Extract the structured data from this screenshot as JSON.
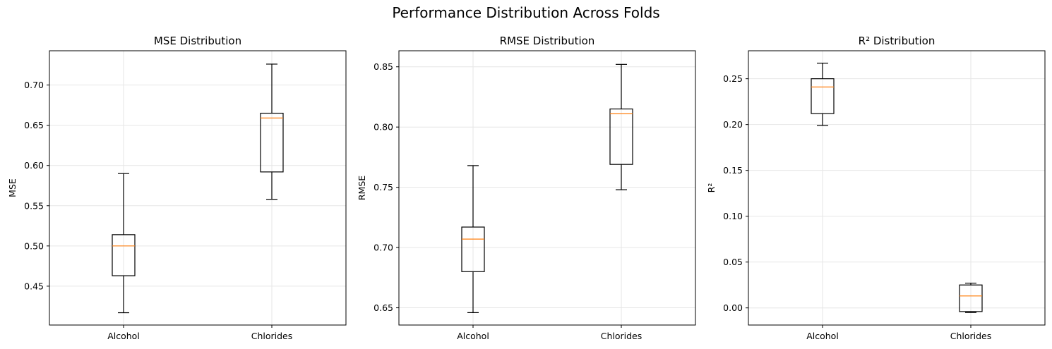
{
  "suptitle": "Performance Distribution Across Folds",
  "chart_data": [
    {
      "type": "box",
      "title": "MSE Distribution",
      "xlabel": "",
      "ylabel": "MSE",
      "categories": [
        "Alcohol",
        "Chlorides"
      ],
      "ylim": [
        0.4017,
        0.7426
      ],
      "yticks": [
        0.45,
        0.5,
        0.55,
        0.6,
        0.65,
        0.7
      ],
      "tick_format": 2,
      "grid": true,
      "boxes": [
        {
          "name": "Alcohol",
          "whisker_low": 0.417,
          "q1": 0.463,
          "median": 0.5,
          "q3": 0.514,
          "whisker_high": 0.59
        },
        {
          "name": "Chlorides",
          "whisker_low": 0.558,
          "q1": 0.592,
          "median": 0.659,
          "q3": 0.665,
          "whisker_high": 0.726
        }
      ]
    },
    {
      "type": "box",
      "title": "RMSE Distribution",
      "xlabel": "",
      "ylabel": "RMSE",
      "categories": [
        "Alcohol",
        "Chlorides"
      ],
      "ylim": [
        0.6357,
        0.8633
      ],
      "yticks": [
        0.65,
        0.7,
        0.75,
        0.8,
        0.85
      ],
      "tick_format": 2,
      "grid": true,
      "boxes": [
        {
          "name": "Alcohol",
          "whisker_low": 0.646,
          "q1": 0.68,
          "median": 0.707,
          "q3": 0.717,
          "whisker_high": 0.768
        },
        {
          "name": "Chlorides",
          "whisker_low": 0.748,
          "q1": 0.769,
          "median": 0.811,
          "q3": 0.815,
          "whisker_high": 0.852
        }
      ]
    },
    {
      "type": "box",
      "title": "R² Distribution",
      "xlabel": "",
      "ylabel": "R²",
      "categories": [
        "Alcohol",
        "Chlorides"
      ],
      "ylim": [
        -0.0187,
        0.2805
      ],
      "yticks": [
        0.0,
        0.05,
        0.1,
        0.15,
        0.2,
        0.25
      ],
      "tick_format": 2,
      "grid": true,
      "boxes": [
        {
          "name": "Alcohol",
          "whisker_low": 0.199,
          "q1": 0.212,
          "median": 0.241,
          "q3": 0.25,
          "whisker_high": 0.267
        },
        {
          "name": "Chlorides",
          "whisker_low": -0.005,
          "q1": -0.004,
          "median": 0.013,
          "q3": 0.025,
          "whisker_high": 0.027
        }
      ]
    }
  ],
  "colors": {
    "box": "#000000",
    "median": "#ff7f0e",
    "grid": "#e6e6e6"
  }
}
